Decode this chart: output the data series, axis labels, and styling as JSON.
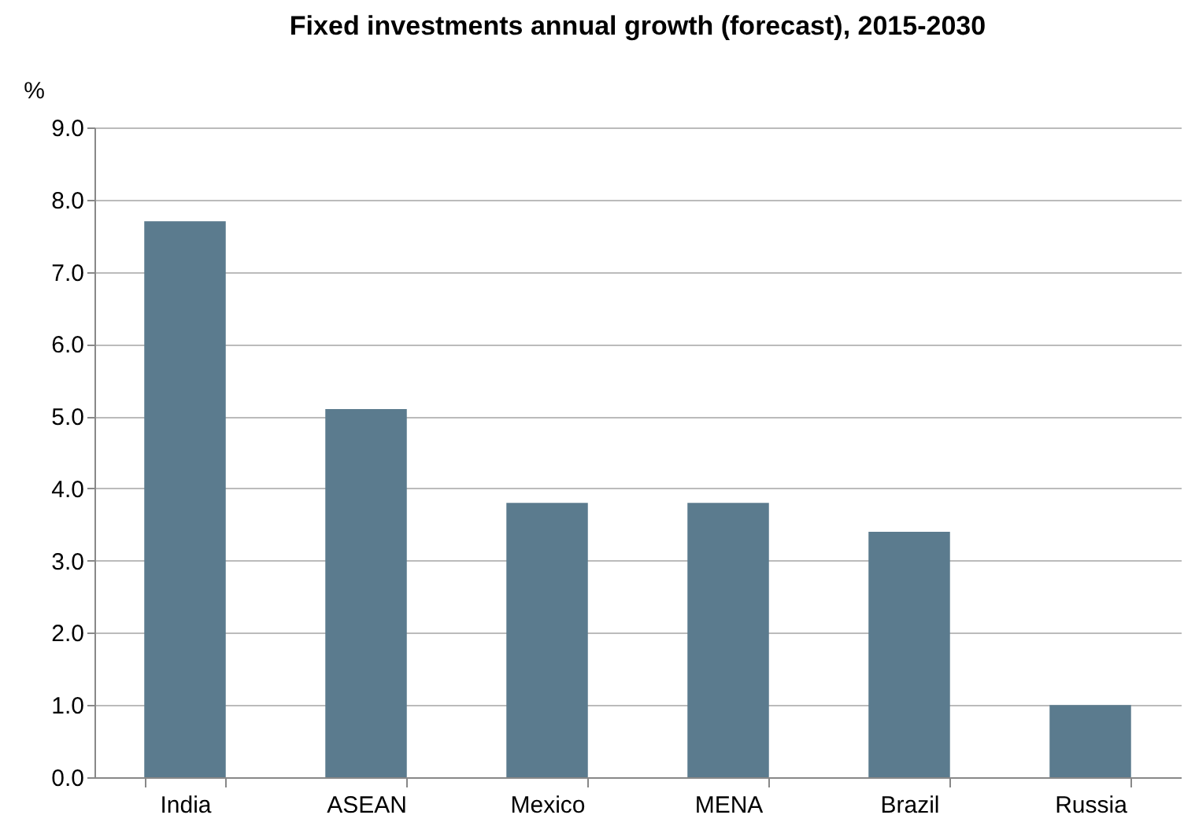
{
  "chart_data": {
    "type": "bar",
    "title": "Fixed investments annual growth (forecast), 2015-2030",
    "ylabel": "%",
    "categories": [
      "India",
      "ASEAN",
      "Mexico",
      "MENA",
      "Brazil",
      "Russia"
    ],
    "values": [
      7.7,
      5.1,
      3.8,
      3.8,
      3.4,
      1.0
    ],
    "color": "#5b7b8e",
    "ylim": [
      0,
      9
    ],
    "yticks": [
      {
        "value": 0,
        "label": "0.0"
      },
      {
        "value": 1,
        "label": "1.0"
      },
      {
        "value": 2,
        "label": "2.0"
      },
      {
        "value": 3,
        "label": "3.0"
      },
      {
        "value": 4,
        "label": "4.0"
      },
      {
        "value": 5,
        "label": "5.0"
      },
      {
        "value": 6,
        "label": "6.0"
      },
      {
        "value": 7,
        "label": "7.0"
      },
      {
        "value": 8,
        "label": "8.0"
      },
      {
        "value": 9,
        "label": "9.0"
      }
    ],
    "grid": "y"
  }
}
